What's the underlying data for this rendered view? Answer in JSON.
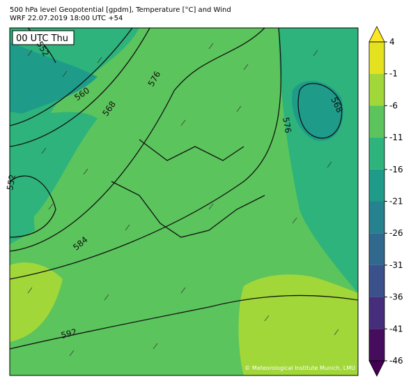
{
  "header": {
    "line1": "500 hPa level Geopotential [gpdm], Temperature [°C] and Wind",
    "line2": "WRF 22.07.2019 18:00 UTC +54"
  },
  "map": {
    "time_label": "00 UTC Thu",
    "credit": "© Meteorological Institute Munich, LMU",
    "contour_labels": [
      552,
      560,
      568,
      576,
      576,
      568,
      552,
      584,
      592
    ]
  },
  "colorbar": {
    "ticks": [
      4,
      -1,
      -6,
      -11,
      -16,
      -21,
      -26,
      -31,
      -36,
      -41,
      -46
    ],
    "colors": [
      "#e4e11f",
      "#a2d73a",
      "#5bc45c",
      "#2db37b",
      "#1e9c89",
      "#26828e",
      "#30688e",
      "#3b518b",
      "#472e7c",
      "#460d5f"
    ],
    "extend_colors": [
      "#fde725",
      "#440154"
    ]
  }
}
